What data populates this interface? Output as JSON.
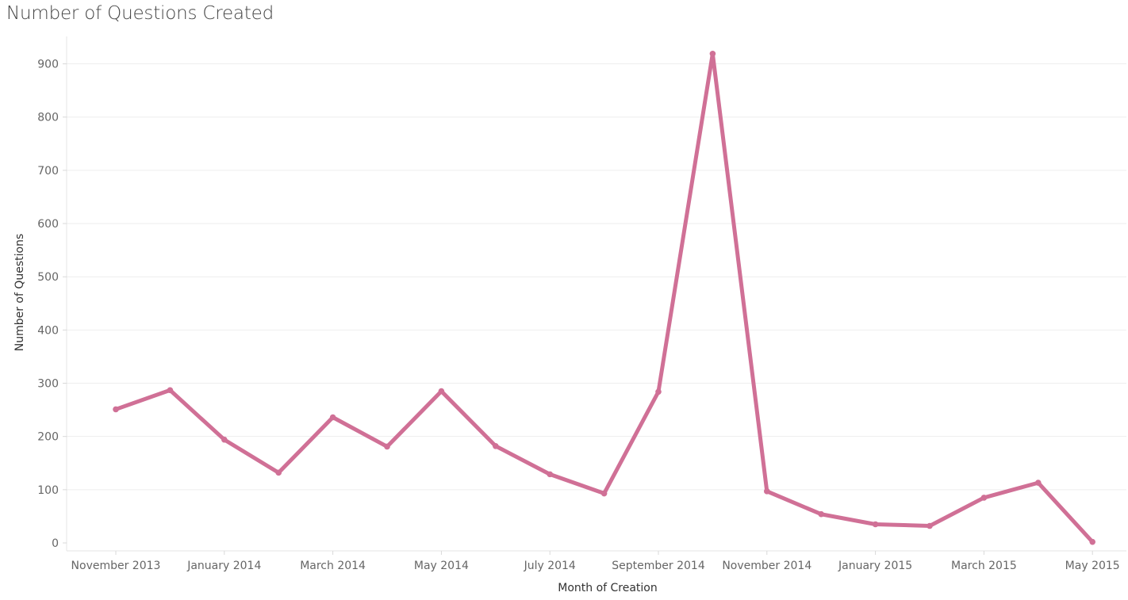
{
  "chart_data": {
    "type": "line",
    "title": "Number of Questions Created",
    "xlabel": "Month of Creation",
    "ylabel": "Number of Questions",
    "ylim": [
      0,
      960
    ],
    "yticks": [
      0,
      100,
      200,
      300,
      400,
      500,
      600,
      700,
      800,
      900
    ],
    "x": [
      "2013-11",
      "2013-12",
      "2014-01",
      "2014-02",
      "2014-03",
      "2014-04",
      "2014-05",
      "2014-06",
      "2014-07",
      "2014-08",
      "2014-09",
      "2014-10",
      "2014-11",
      "2014-12",
      "2015-01",
      "2015-02",
      "2015-03",
      "2015-04",
      "2015-05"
    ],
    "xticks": [
      {
        "x": "2013-11",
        "label": "November 2013"
      },
      {
        "x": "2014-01",
        "label": "January 2014"
      },
      {
        "x": "2014-03",
        "label": "March 2014"
      },
      {
        "x": "2014-05",
        "label": "May 2014"
      },
      {
        "x": "2014-07",
        "label": "July 2014"
      },
      {
        "x": "2014-09",
        "label": "September 2014"
      },
      {
        "x": "2014-11",
        "label": "November 2014"
      },
      {
        "x": "2015-01",
        "label": "January 2015"
      },
      {
        "x": "2015-03",
        "label": "March 2015"
      },
      {
        "x": "2015-05",
        "label": "May 2015"
      }
    ],
    "series": [
      {
        "values": [
          251,
          287,
          194,
          132,
          236,
          181,
          285,
          182,
          129,
          93,
          284,
          919,
          97,
          54,
          35,
          32,
          85,
          113,
          2
        ]
      }
    ],
    "grid": true,
    "legend": "none",
    "colors": {
      "line": "#d07096",
      "grid": "#eeeeee",
      "tick_text": "#666666",
      "title": "#444444"
    }
  }
}
